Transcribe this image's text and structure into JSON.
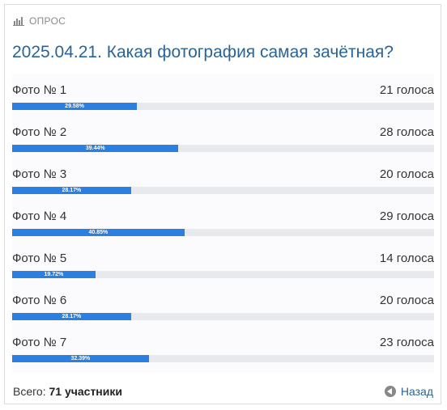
{
  "poll": {
    "header_label": "ОПРОС",
    "header_icon": "bar-chart-icon",
    "title": "2025.04.21. Какая фотография самая зачётная?",
    "options": [
      {
        "label": "Фото № 1",
        "votes_text": "21 голоса",
        "percent_text": "29.58%",
        "percent": 29.58
      },
      {
        "label": "Фото № 2",
        "votes_text": "28 голоса",
        "percent_text": "39.44%",
        "percent": 39.44
      },
      {
        "label": "Фото № 3",
        "votes_text": "20 голоса",
        "percent_text": "28.17%",
        "percent": 28.17
      },
      {
        "label": "Фото № 4",
        "votes_text": "29 голоса",
        "percent_text": "40.85%",
        "percent": 40.85
      },
      {
        "label": "Фото № 5",
        "votes_text": "14 голоса",
        "percent_text": "19.72%",
        "percent": 19.72
      },
      {
        "label": "Фото № 6",
        "votes_text": "20 голоса",
        "percent_text": "28.17%",
        "percent": 28.17
      },
      {
        "label": "Фото № 7",
        "votes_text": "23 голоса",
        "percent_text": "32.39%",
        "percent": 32.39
      }
    ],
    "bar_color": "#2a7fe0",
    "track_color": "#e7e9ec"
  },
  "footer": {
    "total_prefix": "Всего:",
    "total_value": "71 участники",
    "back_label": "Назад",
    "back_icon": "back-arrow-circle-icon"
  }
}
